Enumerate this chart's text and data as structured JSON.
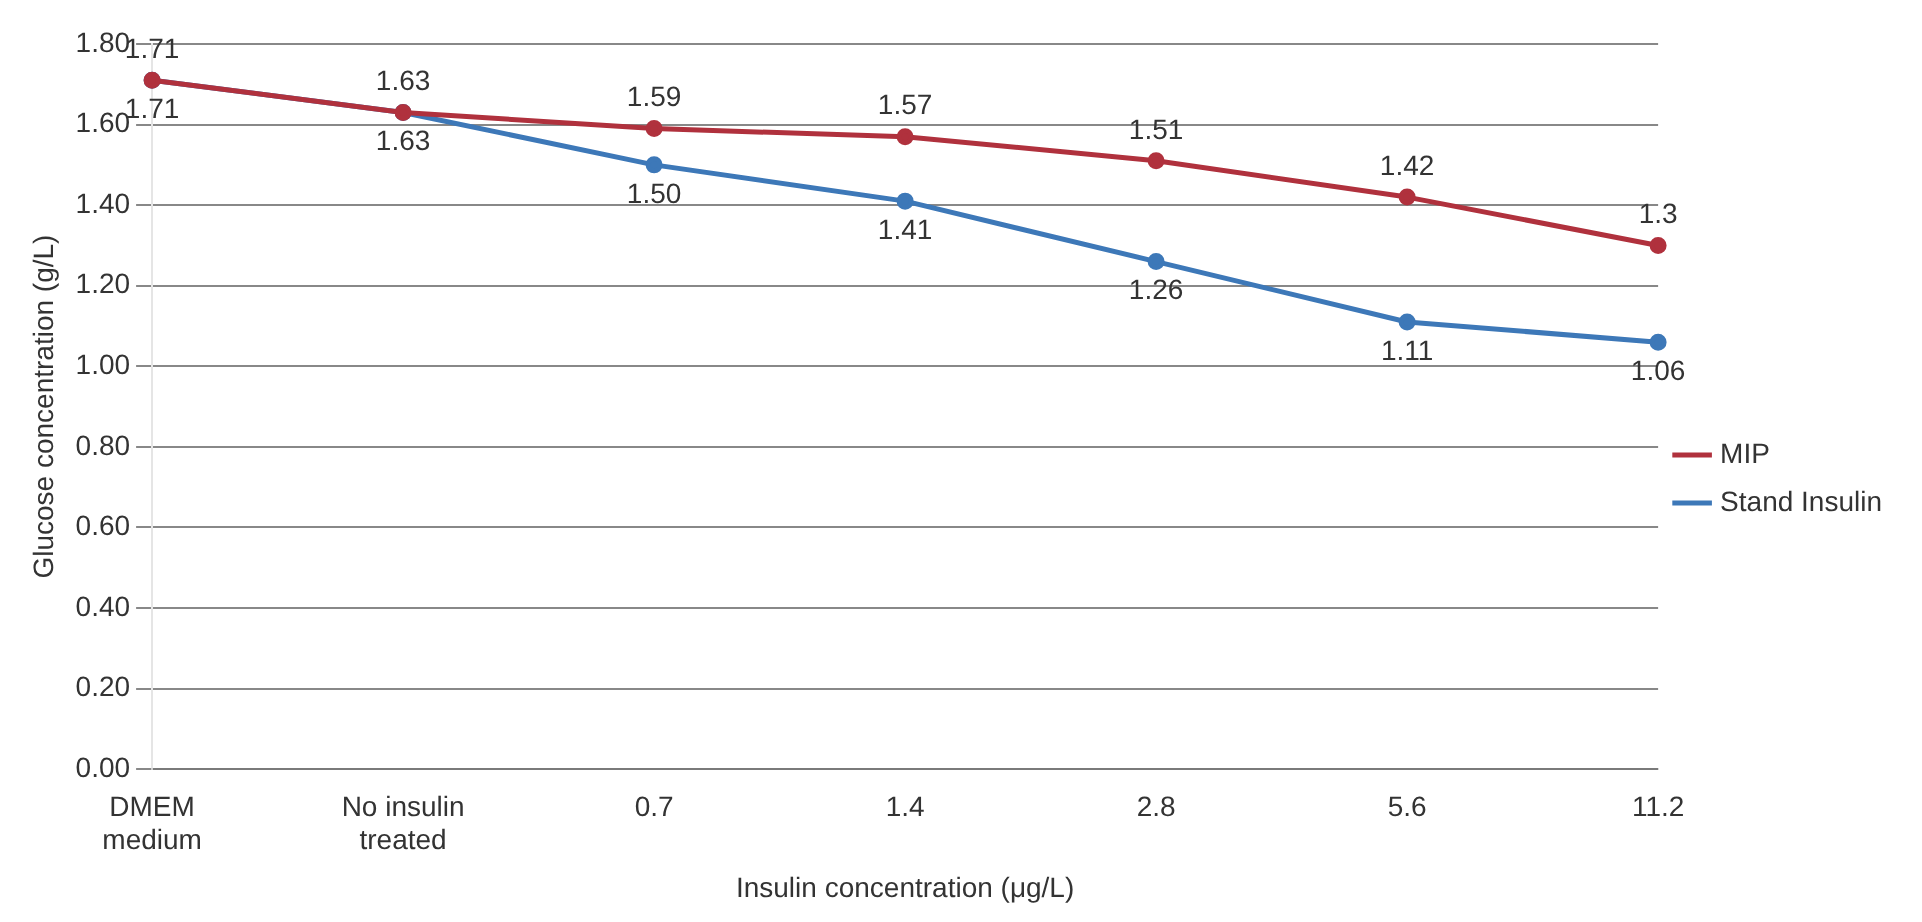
{
  "chart_data": {
    "type": "line",
    "xlabel": "Insulin concentration (μg/L)",
    "ylabel": "Glucose concentration (g/L)",
    "categories": [
      "DMEM medium",
      "No insulin treated",
      "0.7",
      "1.4",
      "2.8",
      "5.6",
      "11.2"
    ],
    "series": [
      {
        "name": "MIP",
        "color": "#b0313d",
        "values": [
          1.71,
          1.63,
          1.59,
          1.57,
          1.51,
          1.42,
          1.3
        ],
        "value_labels": [
          "1.71",
          "1.63",
          "1.59",
          "1.57",
          "1.51",
          "1.42",
          "1.3"
        ]
      },
      {
        "name": "Stand Insulin",
        "color": "#3d78b8",
        "values": [
          1.71,
          1.63,
          1.5,
          1.41,
          1.26,
          1.11,
          1.06
        ],
        "value_labels": [
          "1.71",
          "1.63",
          "1.50",
          "1.41",
          "1.26",
          "1.11",
          "1.06"
        ]
      }
    ],
    "ylim": [
      0,
      1.8
    ],
    "yticks": [
      {
        "value": 0,
        "label": "0.00"
      },
      {
        "value": 0.2,
        "label": "0.20"
      },
      {
        "value": 0.4,
        "label": "0.40"
      },
      {
        "value": 0.6,
        "label": "0.60"
      },
      {
        "value": 0.8,
        "label": "0.80"
      },
      {
        "value": 1,
        "label": "1.00"
      },
      {
        "value": 1.2,
        "label": "1.20"
      },
      {
        "value": 1.4,
        "label": "1.40"
      },
      {
        "value": 1.6,
        "label": "1.60"
      },
      {
        "value": 1.8,
        "label": "1.80"
      }
    ],
    "grid": "y",
    "legend": "right",
    "marker": "circle",
    "line_style": "solid"
  }
}
